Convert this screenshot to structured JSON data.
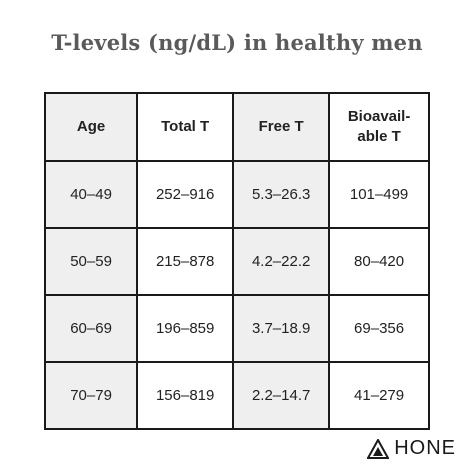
{
  "title": "T-levels (ng/dL) in healthy men",
  "table": {
    "headers": [
      "Age",
      "Total T",
      "Free T",
      "Bioavail-\nable T"
    ],
    "rows": [
      [
        "40–49",
        "252–916",
        "5.3–26.3",
        "101–499"
      ],
      [
        "50–59",
        "215–878",
        "4.2–22.2",
        "80–420"
      ],
      [
        "60–69",
        "196–859",
        "3.7–18.9",
        "69–356"
      ],
      [
        "70–79",
        "156–819",
        "2.2–14.7",
        "41–279"
      ]
    ]
  },
  "logo": {
    "text": "HONE",
    "icon": "triangle-logo-icon"
  },
  "colors": {
    "shaded_column": "#f0efef",
    "border": "#1a1a1a",
    "title": "#5a5a5a"
  }
}
